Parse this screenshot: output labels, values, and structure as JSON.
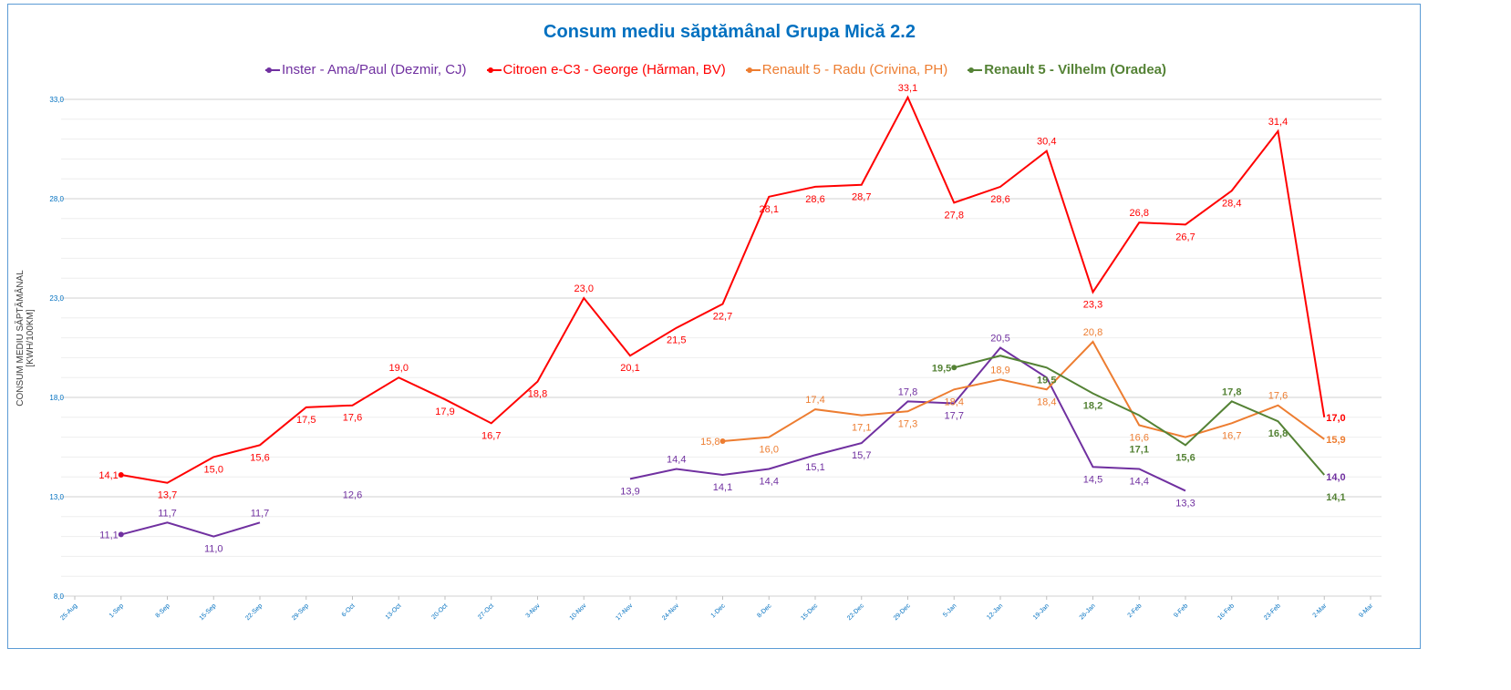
{
  "chart_data": {
    "type": "line",
    "title": "Consum mediu săptămânal Grupa Mică 2.2",
    "ylabel": "CONSUM MEDIU SĂPTĂMÂNAL [KWH/100KM]",
    "xlabel": "",
    "ylim": [
      8,
      33
    ],
    "yticks": [
      "8,0",
      "13,0",
      "18,0",
      "23,0",
      "28,0",
      "33,0"
    ],
    "ytick_values": [
      8,
      13,
      18,
      23,
      28,
      33
    ],
    "minor_grid_step": 1,
    "grid": true,
    "legend_position": "top",
    "categories": [
      "25-Aug",
      "1-Sep",
      "8-Sep",
      "15-Sep",
      "22-Sep",
      "29-Sep",
      "6-Oct",
      "13-Oct",
      "20-Oct",
      "27-Oct",
      "3-Nov",
      "10-Nov",
      "17-Nov",
      "24-Nov",
      "1-Dec",
      "8-Dec",
      "15-Dec",
      "22-Dec",
      "29-Dec",
      "5-Jan",
      "12-Jan",
      "19-Jan",
      "26-Jan",
      "2-Feb",
      "9-Feb",
      "16-Feb",
      "23-Feb",
      "2-Mar",
      "9-Mar"
    ],
    "series": [
      {
        "name": "Inster - Ama/Paul (Dezmir, CJ)",
        "color": "#7030A0",
        "bold": false,
        "values": [
          null,
          11.1,
          11.7,
          11.0,
          11.7,
          null,
          12.6,
          null,
          null,
          null,
          null,
          null,
          13.9,
          14.4,
          14.1,
          14.4,
          15.1,
          15.7,
          17.8,
          17.7,
          20.5,
          19.0,
          14.5,
          14.4,
          13.3,
          null,
          null,
          14.0,
          null
        ],
        "labeled": [
          0,
          1,
          1,
          1,
          1,
          0,
          1,
          0,
          0,
          0,
          0,
          0,
          1,
          1,
          1,
          1,
          1,
          1,
          1,
          1,
          1,
          0,
          1,
          1,
          1,
          0,
          0,
          1,
          0
        ],
        "line_hidden_points": [
          6,
          27
        ]
      },
      {
        "name": "Citroen e-C3 - George (Hărman, BV)",
        "color": "#FF0000",
        "bold": false,
        "values": [
          null,
          14.1,
          13.7,
          15.0,
          15.6,
          17.5,
          17.6,
          19.0,
          17.9,
          16.7,
          18.8,
          23.0,
          20.1,
          21.5,
          22.7,
          28.1,
          28.6,
          28.7,
          33.1,
          27.8,
          28.6,
          30.4,
          23.3,
          26.8,
          26.7,
          28.4,
          31.4,
          17.0,
          null
        ],
        "labeled": [
          0,
          1,
          1,
          1,
          1,
          1,
          1,
          1,
          1,
          1,
          1,
          1,
          1,
          1,
          1,
          1,
          1,
          1,
          1,
          1,
          1,
          1,
          1,
          1,
          1,
          1,
          1,
          1,
          0
        ],
        "line_hidden_points": []
      },
      {
        "name": "Renault 5 - Radu (Crivina, PH)",
        "color": "#ED7D31",
        "bold": false,
        "values": [
          null,
          null,
          null,
          null,
          null,
          null,
          null,
          null,
          null,
          null,
          null,
          null,
          null,
          null,
          15.8,
          16.0,
          17.4,
          17.1,
          17.3,
          18.4,
          18.9,
          18.4,
          20.8,
          16.6,
          16.0,
          16.7,
          17.6,
          15.9,
          null
        ],
        "labeled": [
          0,
          0,
          0,
          0,
          0,
          0,
          0,
          0,
          0,
          0,
          0,
          0,
          0,
          0,
          1,
          1,
          1,
          1,
          1,
          1,
          1,
          1,
          1,
          1,
          0,
          1,
          1,
          1,
          0
        ],
        "line_hidden_points": []
      },
      {
        "name": "Renault 5 - Vilhelm (Oradea)",
        "color": "#548235",
        "bold": true,
        "values": [
          null,
          null,
          null,
          null,
          null,
          null,
          null,
          null,
          null,
          null,
          null,
          null,
          null,
          null,
          null,
          null,
          null,
          null,
          null,
          19.5,
          20.1,
          19.5,
          18.2,
          17.1,
          15.6,
          17.8,
          16.8,
          14.1,
          null
        ],
        "labeled": [
          0,
          0,
          0,
          0,
          0,
          0,
          0,
          0,
          0,
          0,
          0,
          0,
          0,
          0,
          0,
          0,
          0,
          0,
          0,
          1,
          0,
          1,
          1,
          1,
          1,
          1,
          1,
          1,
          0
        ],
        "line_hidden_points": []
      }
    ]
  }
}
